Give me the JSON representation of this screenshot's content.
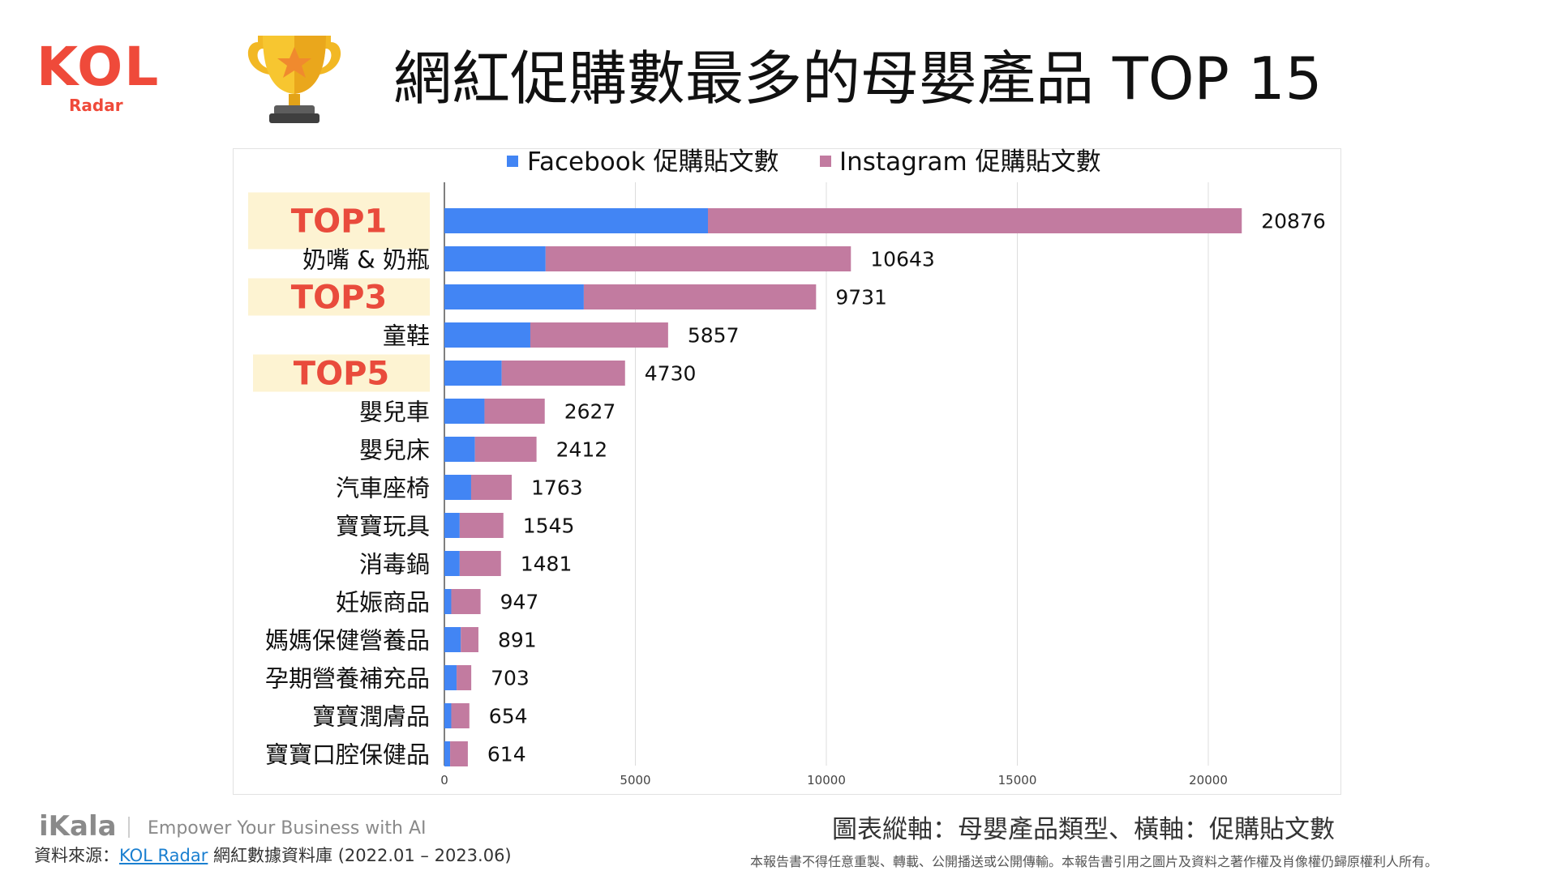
{
  "header": {
    "logo_text": "KOL",
    "logo_sub": "Radar",
    "title": "網紅促購數最多的母嬰產品 TOP 15"
  },
  "colors": {
    "facebook": "#4285f4",
    "instagram": "#c27ba0",
    "highlight": "#fdf3d2",
    "top_label": "#e94b3c",
    "logo": "#ef4a3a"
  },
  "highlights": [
    "TOP1",
    "TOP3",
    "TOP5"
  ],
  "chart_data": {
    "type": "bar",
    "orientation": "horizontal",
    "stacked": true,
    "categories": [
      "寶寶口腔保健品",
      "寶寶潤膚品",
      "孕期營養補充品",
      "媽媽保健營養品",
      "妊娠商品",
      "消毒鍋",
      "寶寶玩具",
      "汽車座椅",
      "嬰兒床",
      "嬰兒車",
      "",
      "童鞋",
      "",
      "奶嘴 & 奶瓶",
      ""
    ],
    "category_order": "top-to-bottom",
    "series": [
      {
        "name": "Facebook 促購貼文數",
        "values": [
          150,
          180,
          320,
          430,
          180,
          400,
          400,
          700,
          800,
          1050,
          1500,
          2250,
          3650,
          2650,
          6900
        ]
      },
      {
        "name": "Instagram 促購貼文數",
        "values": [
          464,
          474,
          383,
          461,
          767,
          1081,
          1145,
          1063,
          1612,
          1577,
          3230,
          3607,
          6081,
          7993,
          13976
        ]
      }
    ],
    "totals": [
      614,
      654,
      703,
      891,
      947,
      1481,
      1545,
      1763,
      2412,
      2627,
      4730,
      5857,
      9731,
      10643,
      20876
    ],
    "x_ticks": [
      0,
      5000,
      10000,
      15000,
      20000
    ],
    "xlim": [
      0,
      22000
    ],
    "grid": true,
    "legend": "top"
  },
  "footer": {
    "brand": "iKala",
    "tagline": "Empower Your Business with AI",
    "source_prefix": "資料來源：",
    "source_link": "KOL Radar",
    "source_suffix": " 網紅數據資料庫 (2022.01 – 2023.06)",
    "axis_note": "圖表縱軸：母嬰產品類型、橫軸：促購貼文數",
    "copyright": "本報告書不得任意重製、轉載、公開播送或公開傳輸。本報告書引用之圖片及資料之著作權及肖像權仍歸原權利人所有。"
  }
}
